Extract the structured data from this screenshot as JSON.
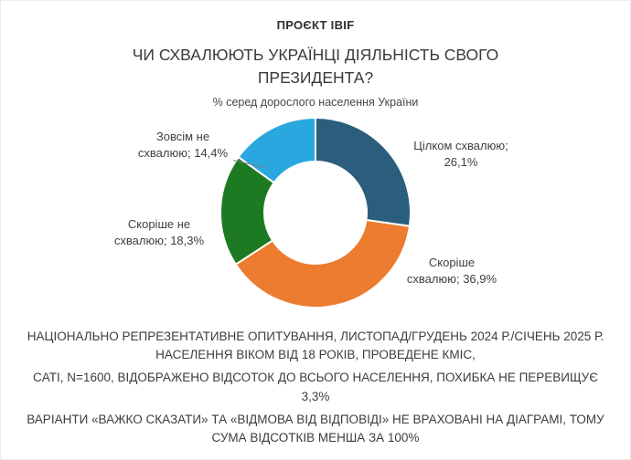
{
  "header": {
    "project_label": "ПРОЄКТ IBIF",
    "title": "ЧИ СХВАЛЮЮТЬ УКРАЇНЦІ ДІЯЛЬНІСТЬ СВОГО ПРЕЗИДЕНТА?",
    "subtitle": "% серед дорослого населення України"
  },
  "chart_data": {
    "type": "pie",
    "variant": "donut",
    "title": "ЧИ СХВАЛЮЮТЬ УКРАЇНЦІ ДІЯЛЬНІСТЬ СВОГО ПРЕЗИДЕНТА?",
    "subtitle": "% серед дорослого населення України",
    "unit": "%",
    "start_angle_deg": 0,
    "direction": "clockwise",
    "legend_position": "none",
    "labels_style": "category-with-percent-outside",
    "note": "sum is less than 100% because 'hard to say' and 'refusal' options are excluded",
    "segments": [
      {
        "label": "Цілком схвалюю",
        "value": 26.1,
        "percent_display": "26,1%",
        "color": "#2a5e7c",
        "label_line1": "Цілком схвалюю;",
        "label_line2": "26,1%"
      },
      {
        "label": "Скоріше схвалюю",
        "value": 36.9,
        "percent_display": "36,9%",
        "color": "#ec7c30",
        "label_line1": "Скоріше",
        "label_line2": "схвалюю; 36,9%"
      },
      {
        "label": "Скоріше не схвалюю",
        "value": 18.3,
        "percent_display": "18,3%",
        "color": "#1e7a22",
        "label_line1": "Скоріше не",
        "label_line2": "схвалюю; 18,3%"
      },
      {
        "label": "Зовсім не схвалюю",
        "value": 14.4,
        "percent_display": "14,4%",
        "color": "#29a8e0",
        "label_line1": "Зовсім не",
        "label_line2": "схвалюю; 14,4%"
      }
    ]
  },
  "footer": {
    "note1": "НАЦІОНАЛЬНО РЕПРЕЗЕНТАТИВНЕ ОПИТУВАННЯ, ЛИСТОПАД/ГРУДЕНЬ 2024 Р./СІЧЕНЬ 2025 Р. НАСЕЛЕННЯ ВІКОМ ВІД 18 РОКІВ, ПРОВЕДЕНЕ КМІС,",
    "note2": "CATI, N=1600, ВІДОБРАЖЕНО ВІДСОТОК ДО ВСЬОГО НАСЕЛЕННЯ, ПОХИБКА НЕ ПЕРЕВИЩУЄ 3,3%",
    "note3": "ВАРІАНТИ «ВАЖКО СКАЗАТИ» ТА «ВІДМОВА ВІД ВІДПОВІДІ» НЕ ВРАХОВАНІ НА ДІАГРАМІ, ТОМУ СУМА ВІДСОТКІВ МЕНША ЗА 100%"
  }
}
